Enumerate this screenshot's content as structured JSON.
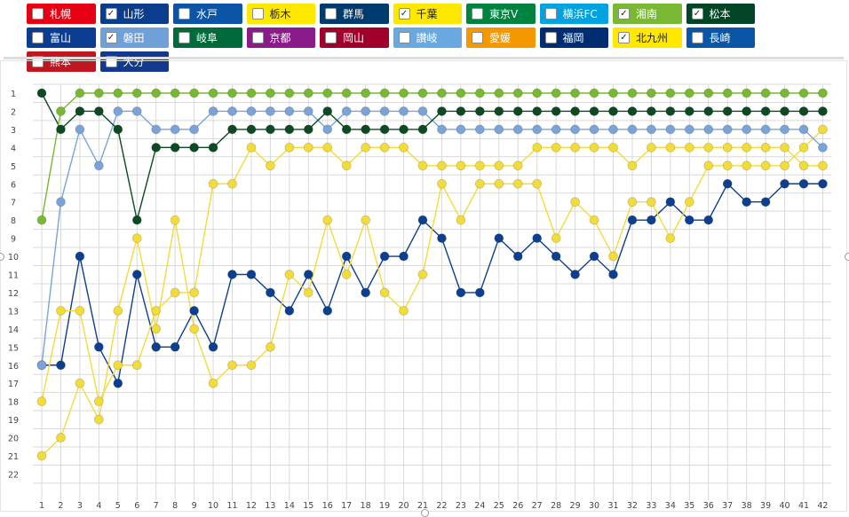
{
  "teams": [
    {
      "name": "札幌",
      "color": "#e60012",
      "text": "#ffffff",
      "checked": false
    },
    {
      "name": "山形",
      "color": "#0b3d8c",
      "text": "#ffffff",
      "checked": true
    },
    {
      "name": "水戸",
      "color": "#0a55a6",
      "text": "#ffffff",
      "checked": false
    },
    {
      "name": "栃木",
      "color": "#ffe800",
      "text": "#222222",
      "checked": false
    },
    {
      "name": "群馬",
      "color": "#003b6f",
      "text": "#ffffff",
      "checked": false
    },
    {
      "name": "千葉",
      "color": "#ffe800",
      "text": "#222222",
      "checked": true
    },
    {
      "name": "東京V",
      "color": "#00833e",
      "text": "#ffffff",
      "checked": false
    },
    {
      "name": "横浜FC",
      "color": "#00a3e0",
      "text": "#ffffff",
      "checked": false
    },
    {
      "name": "湘南",
      "color": "#78b833",
      "text": "#ffffff",
      "checked": true
    },
    {
      "name": "松本",
      "color": "#004526",
      "text": "#ffffff",
      "checked": true
    },
    {
      "name": "富山",
      "color": "#0a3d91",
      "text": "#ffffff",
      "checked": false
    },
    {
      "name": "磐田",
      "color": "#6fa0d8",
      "text": "#ffffff",
      "checked": true
    },
    {
      "name": "岐阜",
      "color": "#006a3a",
      "text": "#ffffff",
      "checked": false
    },
    {
      "name": "京都",
      "color": "#8b1a8b",
      "text": "#ffffff",
      "checked": false
    },
    {
      "name": "岡山",
      "color": "#a0002a",
      "text": "#ffffff",
      "checked": false
    },
    {
      "name": "讃岐",
      "color": "#6aa8e0",
      "text": "#ffffff",
      "checked": false
    },
    {
      "name": "愛媛",
      "color": "#f39800",
      "text": "#ffffff",
      "checked": false
    },
    {
      "name": "福岡",
      "color": "#002d72",
      "text": "#ffffff",
      "checked": false
    },
    {
      "name": "北九州",
      "color": "#ffe800",
      "text": "#222222",
      "checked": true
    },
    {
      "name": "長崎",
      "color": "#0a55a6",
      "text": "#ffffff",
      "checked": false
    },
    {
      "name": "熊本",
      "color": "#c0161f",
      "text": "#ffffff",
      "checked": false
    },
    {
      "name": "大分",
      "color": "#123a8c",
      "text": "#ffffff",
      "checked": false
    }
  ],
  "check_mark": "✓",
  "chart_data": {
    "type": "line",
    "x": [
      1,
      2,
      3,
      4,
      5,
      6,
      7,
      8,
      9,
      10,
      11,
      12,
      13,
      14,
      15,
      16,
      17,
      18,
      19,
      20,
      21,
      22,
      23,
      24,
      25,
      26,
      27,
      28,
      29,
      30,
      31,
      32,
      33,
      34,
      35,
      36,
      37,
      38,
      39,
      40,
      41,
      42
    ],
    "y_ticks": [
      1,
      2,
      3,
      4,
      5,
      6,
      7,
      8,
      9,
      10,
      11,
      12,
      13,
      14,
      15,
      16,
      17,
      18,
      19,
      20,
      21,
      22
    ],
    "y_range": [
      1,
      22
    ],
    "y_inverted": true,
    "grid": true,
    "series": [
      {
        "team": "湘南",
        "color": "#78b833",
        "values": [
          8,
          2,
          1,
          1,
          1,
          1,
          1,
          1,
          1,
          1,
          1,
          1,
          1,
          1,
          1,
          1,
          1,
          1,
          1,
          1,
          1,
          1,
          1,
          1,
          1,
          1,
          1,
          1,
          1,
          1,
          1,
          1,
          1,
          1,
          1,
          1,
          1,
          1,
          1,
          1,
          1,
          1
        ]
      },
      {
        "team": "松本",
        "color": "#0b4a22",
        "values": [
          1,
          3,
          2,
          2,
          3,
          8,
          4,
          4,
          4,
          4,
          3,
          3,
          3,
          3,
          3,
          2,
          3,
          3,
          3,
          3,
          3,
          2,
          2,
          2,
          2,
          2,
          2,
          2,
          2,
          2,
          2,
          2,
          2,
          2,
          2,
          2,
          2,
          2,
          2,
          2,
          2,
          2
        ]
      },
      {
        "team": "磐田",
        "color": "#7aa3da",
        "values": [
          16,
          7,
          3,
          5,
          2,
          2,
          3,
          3,
          3,
          2,
          2,
          2,
          2,
          2,
          2,
          3,
          2,
          2,
          2,
          2,
          2,
          3,
          3,
          3,
          3,
          3,
          3,
          3,
          3,
          3,
          3,
          3,
          3,
          3,
          3,
          3,
          3,
          3,
          3,
          3,
          3,
          4
        ]
      },
      {
        "team": "千葉",
        "color": "#f2dc3a",
        "values": [
          18,
          13,
          13,
          18,
          16,
          16,
          13,
          12,
          12,
          6,
          6,
          4,
          5,
          4,
          4,
          4,
          5,
          4,
          4,
          4,
          5,
          5,
          5,
          5,
          5,
          5,
          4,
          4,
          4,
          4,
          4,
          5,
          4,
          4,
          4,
          4,
          4,
          4,
          4,
          4,
          5,
          5
        ]
      },
      {
        "team": "北九州",
        "color": "#f2dc3a",
        "values": [
          21,
          20,
          17,
          19,
          13,
          9,
          14,
          8,
          14,
          17,
          16,
          16,
          15,
          11,
          12,
          8,
          11,
          8,
          12,
          13,
          11,
          6,
          8,
          6,
          6,
          6,
          6,
          9,
          7,
          8,
          10,
          7,
          7,
          9,
          7,
          5,
          5,
          5,
          5,
          5,
          4,
          3
        ]
      },
      {
        "team": "山形",
        "color": "#0d3f8f",
        "values": [
          16,
          16,
          10,
          15,
          17,
          11,
          15,
          15,
          13,
          15,
          11,
          11,
          12,
          13,
          11,
          13,
          10,
          12,
          10,
          10,
          8,
          9,
          12,
          12,
          9,
          10,
          9,
          10,
          11,
          10,
          11,
          8,
          8,
          7,
          8,
          8,
          6,
          7,
          7,
          6,
          6,
          6
        ]
      }
    ]
  }
}
